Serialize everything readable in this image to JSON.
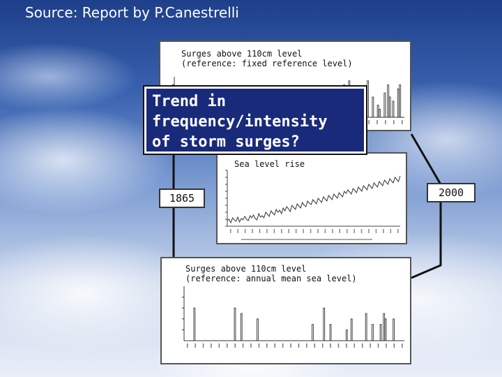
{
  "source_text": "Source: Report by P.Canestrelli",
  "question_text_lines": [
    "Trend in",
    "frequency/intensity",
    "of storm surges?"
  ],
  "panels": {
    "surges_fixed": {
      "title_line1": "Surges above 110cm level",
      "title_line2": "(reference: fixed reference level)"
    },
    "sea_level": {
      "title": "Sea level rise"
    },
    "surges_annual": {
      "title_line1": "Surges above 110cm level",
      "title_line2": "(reference: annual mean sea level)"
    }
  },
  "years": {
    "start": "1865",
    "end": "2000"
  },
  "chart_data": [
    {
      "type": "bar",
      "title": "Surges above 110cm level (reference: fixed reference level)",
      "values": [
        0,
        0,
        0,
        0,
        0,
        0,
        0,
        0,
        0,
        0,
        0,
        0,
        0,
        0,
        0,
        0,
        0,
        0,
        0,
        0,
        1,
        0,
        0,
        0,
        0,
        0,
        0,
        0,
        0,
        0,
        0,
        0,
        0,
        0,
        0,
        0,
        0,
        0,
        0,
        1,
        0,
        0,
        0,
        0,
        0,
        0,
        0,
        0,
        1,
        0,
        0,
        0,
        2,
        0,
        0,
        0,
        0,
        0,
        0,
        0,
        1,
        0,
        0,
        0,
        0,
        0,
        2,
        0,
        0,
        3,
        0,
        0,
        1,
        0,
        0,
        0,
        0,
        0,
        2,
        0,
        1,
        0,
        0,
        0,
        0,
        3,
        0,
        0,
        2,
        0,
        4,
        5,
        7,
        3,
        0,
        6,
        0,
        2,
        0,
        0,
        8,
        3,
        5,
        9,
        2,
        4,
        6,
        0,
        3,
        5,
        1,
        0,
        4,
        3,
        9,
        0,
        0,
        5,
        0,
        0,
        3,
        2,
        0,
        0,
        6,
        0,
        8,
        5,
        0,
        4,
        0,
        0,
        7,
        8,
        0,
        0
      ],
      "ylim": [
        0,
        10
      ]
    },
    {
      "type": "line",
      "title": "Sea level rise",
      "values": [
        8,
        10,
        5,
        12,
        9,
        7,
        13,
        6,
        11,
        9,
        14,
        10,
        8,
        15,
        12,
        16,
        11,
        9,
        18,
        13,
        15,
        12,
        20,
        17,
        14,
        22,
        19,
        16,
        24,
        20,
        23,
        18,
        26,
        22,
        28,
        25,
        21,
        30,
        27,
        24,
        32,
        29,
        26,
        34,
        30,
        28,
        36,
        33,
        31,
        38,
        35,
        32,
        40,
        37,
        34,
        42,
        39,
        36,
        44,
        41,
        38,
        46,
        43,
        40,
        48,
        45,
        42,
        50,
        47,
        52,
        49,
        46,
        54,
        51,
        48,
        56,
        53,
        50,
        58,
        55,
        52,
        60,
        57,
        54,
        62,
        59,
        56,
        64,
        61,
        58,
        66,
        63,
        60,
        68,
        65,
        62,
        70,
        67,
        64,
        72
      ],
      "ylim": [
        0,
        80
      ]
    },
    {
      "type": "bar",
      "title": "Surges above 110cm level (reference: annual mean sea level)",
      "values": [
        0,
        0,
        0,
        0,
        0,
        0,
        6,
        0,
        0,
        0,
        0,
        0,
        0,
        0,
        0,
        0,
        0,
        0,
        0,
        0,
        0,
        0,
        0,
        0,
        0,
        0,
        0,
        0,
        0,
        0,
        0,
        6,
        0,
        0,
        0,
        5,
        0,
        0,
        0,
        0,
        0,
        0,
        0,
        0,
        0,
        4,
        0,
        0,
        0,
        0,
        0,
        0,
        0,
        0,
        0,
        0,
        0,
        0,
        0,
        0,
        0,
        0,
        0,
        0,
        0,
        0,
        0,
        0,
        0,
        0,
        0,
        0,
        0,
        0,
        0,
        0,
        0,
        0,
        0,
        3,
        0,
        0,
        0,
        0,
        0,
        0,
        6,
        0,
        0,
        0,
        3,
        0,
        0,
        0,
        0,
        0,
        0,
        0,
        0,
        0,
        2,
        0,
        0,
        4,
        0,
        0,
        0,
        0,
        0,
        0,
        0,
        0,
        5,
        0,
        0,
        0,
        3,
        0,
        0,
        0,
        0,
        3,
        0,
        5,
        4,
        0,
        0,
        0,
        0,
        4,
        0,
        0,
        0,
        0,
        0,
        0
      ],
      "ylim": [
        0,
        10
      ]
    }
  ]
}
